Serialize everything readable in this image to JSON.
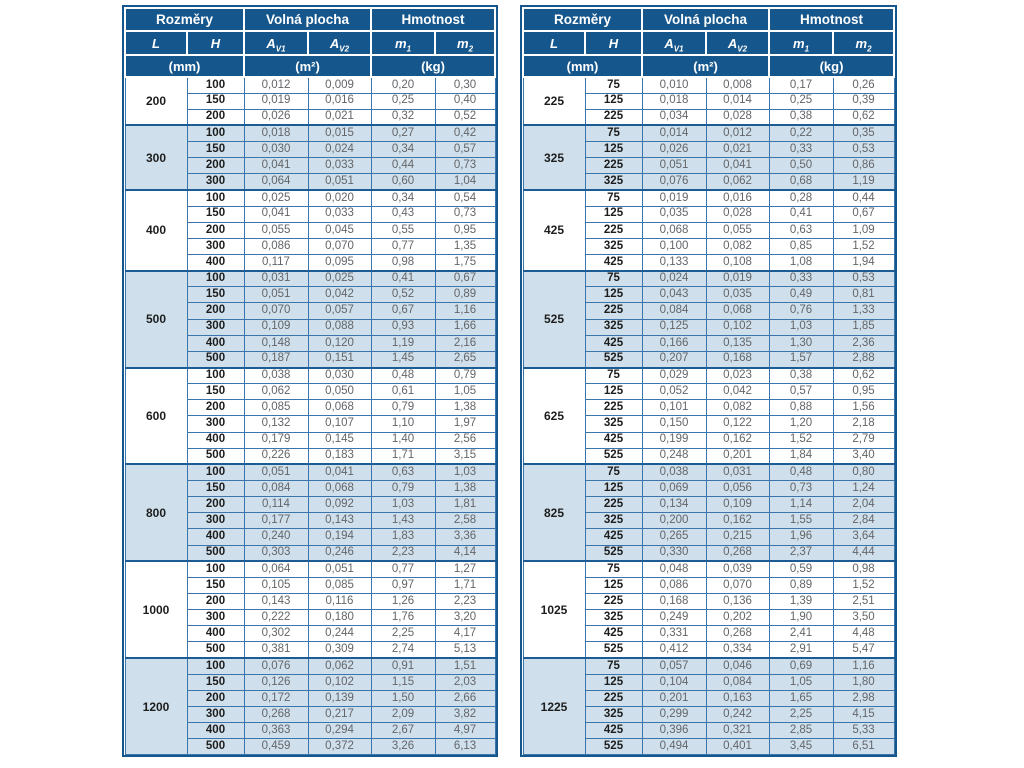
{
  "header": {
    "group_dimensions": "Rozměry",
    "group_free_area": "Volná plocha",
    "group_weight": "Hmotnost",
    "col_l": "L",
    "col_h": "H",
    "symbol_a": "A",
    "sub_v1": "V1",
    "sub_v2": "V2",
    "symbol_m": "m",
    "sub_1": "1",
    "sub_2": "2",
    "unit_mm": "(mm)",
    "unit_m2": "(m²)",
    "unit_kg": "(kg)"
  },
  "colors": {
    "header_bg": "#15568d",
    "alt_row_bg": "#cfe0ec",
    "grid_line": "#3a76ab",
    "group_line": "#1c5c94",
    "value_text": "#636569",
    "dim_text": "#1d1d1d"
  },
  "tables": [
    {
      "side": "left",
      "groups": [
        {
          "l": "200",
          "rows": [
            [
              "100",
              "0,012",
              "0,009",
              "0,20",
              "0,30"
            ],
            [
              "150",
              "0,019",
              "0,016",
              "0,25",
              "0,40"
            ],
            [
              "200",
              "0,026",
              "0,021",
              "0,32",
              "0,52"
            ]
          ]
        },
        {
          "l": "300",
          "rows": [
            [
              "100",
              "0,018",
              "0,015",
              "0,27",
              "0,42"
            ],
            [
              "150",
              "0,030",
              "0,024",
              "0,34",
              "0,57"
            ],
            [
              "200",
              "0,041",
              "0,033",
              "0,44",
              "0,73"
            ],
            [
              "300",
              "0,064",
              "0,051",
              "0,60",
              "1,04"
            ]
          ]
        },
        {
          "l": "400",
          "rows": [
            [
              "100",
              "0,025",
              "0,020",
              "0,34",
              "0,54"
            ],
            [
              "150",
              "0,041",
              "0,033",
              "0,43",
              "0,73"
            ],
            [
              "200",
              "0,055",
              "0,045",
              "0,55",
              "0,95"
            ],
            [
              "300",
              "0,086",
              "0,070",
              "0,77",
              "1,35"
            ],
            [
              "400",
              "0,117",
              "0,095",
              "0,98",
              "1,75"
            ]
          ]
        },
        {
          "l": "500",
          "rows": [
            [
              "100",
              "0,031",
              "0,025",
              "0,41",
              "0,67"
            ],
            [
              "150",
              "0,051",
              "0,042",
              "0,52",
              "0,89"
            ],
            [
              "200",
              "0,070",
              "0,057",
              "0,67",
              "1,16"
            ],
            [
              "300",
              "0,109",
              "0,088",
              "0,93",
              "1,66"
            ],
            [
              "400",
              "0,148",
              "0,120",
              "1,19",
              "2,16"
            ],
            [
              "500",
              "0,187",
              "0,151",
              "1,45",
              "2,65"
            ]
          ]
        },
        {
          "l": "600",
          "rows": [
            [
              "100",
              "0,038",
              "0,030",
              "0,48",
              "0,79"
            ],
            [
              "150",
              "0,062",
              "0,050",
              "0,61",
              "1,05"
            ],
            [
              "200",
              "0,085",
              "0,068",
              "0,79",
              "1,38"
            ],
            [
              "300",
              "0,132",
              "0,107",
              "1,10",
              "1,97"
            ],
            [
              "400",
              "0,179",
              "0,145",
              "1,40",
              "2,56"
            ],
            [
              "500",
              "0,226",
              "0,183",
              "1,71",
              "3,15"
            ]
          ]
        },
        {
          "l": "800",
          "rows": [
            [
              "100",
              "0,051",
              "0,041",
              "0,63",
              "1,03"
            ],
            [
              "150",
              "0,084",
              "0,068",
              "0,79",
              "1,38"
            ],
            [
              "200",
              "0,114",
              "0,092",
              "1,03",
              "1,81"
            ],
            [
              "300",
              "0,177",
              "0,143",
              "1,43",
              "2,58"
            ],
            [
              "400",
              "0,240",
              "0,194",
              "1,83",
              "3,36"
            ],
            [
              "500",
              "0,303",
              "0,246",
              "2,23",
              "4,14"
            ]
          ]
        },
        {
          "l": "1000",
          "rows": [
            [
              "100",
              "0,064",
              "0,051",
              "0,77",
              "1,27"
            ],
            [
              "150",
              "0,105",
              "0,085",
              "0,97",
              "1,71"
            ],
            [
              "200",
              "0,143",
              "0,116",
              "1,26",
              "2,23"
            ],
            [
              "300",
              "0,222",
              "0,180",
              "1,76",
              "3,20"
            ],
            [
              "400",
              "0,302",
              "0,244",
              "2,25",
              "4,17"
            ],
            [
              "500",
              "0,381",
              "0,309",
              "2,74",
              "5,13"
            ]
          ]
        },
        {
          "l": "1200",
          "rows": [
            [
              "100",
              "0,076",
              "0,062",
              "0,91",
              "1,51"
            ],
            [
              "150",
              "0,126",
              "0,102",
              "1,15",
              "2,03"
            ],
            [
              "200",
              "0,172",
              "0,139",
              "1,50",
              "2,66"
            ],
            [
              "300",
              "0,268",
              "0,217",
              "2,09",
              "3,82"
            ],
            [
              "400",
              "0,363",
              "0,294",
              "2,67",
              "4,97"
            ],
            [
              "500",
              "0,459",
              "0,372",
              "3,26",
              "6,13"
            ]
          ]
        }
      ]
    },
    {
      "side": "right",
      "groups": [
        {
          "l": "225",
          "rows": [
            [
              "75",
              "0,010",
              "0,008",
              "0,17",
              "0,26"
            ],
            [
              "125",
              "0,018",
              "0,014",
              "0,25",
              "0,39"
            ],
            [
              "225",
              "0,034",
              "0,028",
              "0,38",
              "0,62"
            ]
          ]
        },
        {
          "l": "325",
          "rows": [
            [
              "75",
              "0,014",
              "0,012",
              "0,22",
              "0,35"
            ],
            [
              "125",
              "0,026",
              "0,021",
              "0,33",
              "0,53"
            ],
            [
              "225",
              "0,051",
              "0,041",
              "0,50",
              "0,86"
            ],
            [
              "325",
              "0,076",
              "0,062",
              "0,68",
              "1,19"
            ]
          ]
        },
        {
          "l": "425",
          "rows": [
            [
              "75",
              "0,019",
              "0,016",
              "0,28",
              "0,44"
            ],
            [
              "125",
              "0,035",
              "0,028",
              "0,41",
              "0,67"
            ],
            [
              "225",
              "0,068",
              "0,055",
              "0,63",
              "1,09"
            ],
            [
              "325",
              "0,100",
              "0,082",
              "0,85",
              "1,52"
            ],
            [
              "425",
              "0,133",
              "0,108",
              "1,08",
              "1,94"
            ]
          ]
        },
        {
          "l": "525",
          "rows": [
            [
              "75",
              "0,024",
              "0,019",
              "0,33",
              "0,53"
            ],
            [
              "125",
              "0,043",
              "0,035",
              "0,49",
              "0,81"
            ],
            [
              "225",
              "0,084",
              "0,068",
              "0,76",
              "1,33"
            ],
            [
              "325",
              "0,125",
              "0,102",
              "1,03",
              "1,85"
            ],
            [
              "425",
              "0,166",
              "0,135",
              "1,30",
              "2,36"
            ],
            [
              "525",
              "0,207",
              "0,168",
              "1,57",
              "2,88"
            ]
          ]
        },
        {
          "l": "625",
          "rows": [
            [
              "75",
              "0,029",
              "0,023",
              "0,38",
              "0,62"
            ],
            [
              "125",
              "0,052",
              "0,042",
              "0,57",
              "0,95"
            ],
            [
              "225",
              "0,101",
              "0,082",
              "0,88",
              "1,56"
            ],
            [
              "325",
              "0,150",
              "0,122",
              "1,20",
              "2,18"
            ],
            [
              "425",
              "0,199",
              "0,162",
              "1,52",
              "2,79"
            ],
            [
              "525",
              "0,248",
              "0,201",
              "1,84",
              "3,40"
            ]
          ]
        },
        {
          "l": "825",
          "rows": [
            [
              "75",
              "0,038",
              "0,031",
              "0,48",
              "0,80"
            ],
            [
              "125",
              "0,069",
              "0,056",
              "0,73",
              "1,24"
            ],
            [
              "225",
              "0,134",
              "0,109",
              "1,14",
              "2,04"
            ],
            [
              "325",
              "0,200",
              "0,162",
              "1,55",
              "2,84"
            ],
            [
              "425",
              "0,265",
              "0,215",
              "1,96",
              "3,64"
            ],
            [
              "525",
              "0,330",
              "0,268",
              "2,37",
              "4,44"
            ]
          ]
        },
        {
          "l": "1025",
          "rows": [
            [
              "75",
              "0,048",
              "0,039",
              "0,59",
              "0,98"
            ],
            [
              "125",
              "0,086",
              "0,070",
              "0,89",
              "1,52"
            ],
            [
              "225",
              "0,168",
              "0,136",
              "1,39",
              "2,51"
            ],
            [
              "325",
              "0,249",
              "0,202",
              "1,90",
              "3,50"
            ],
            [
              "425",
              "0,331",
              "0,268",
              "2,41",
              "4,48"
            ],
            [
              "525",
              "0,412",
              "0,334",
              "2,91",
              "5,47"
            ]
          ]
        },
        {
          "l": "1225",
          "rows": [
            [
              "75",
              "0,057",
              "0,046",
              "0,69",
              "1,16"
            ],
            [
              "125",
              "0,104",
              "0,084",
              "1,05",
              "1,80"
            ],
            [
              "225",
              "0,201",
              "0,163",
              "1,65",
              "2,98"
            ],
            [
              "325",
              "0,299",
              "0,242",
              "2,25",
              "4,15"
            ],
            [
              "425",
              "0,396",
              "0,321",
              "2,85",
              "5,33"
            ],
            [
              "525",
              "0,494",
              "0,401",
              "3,45",
              "6,51"
            ]
          ]
        }
      ]
    }
  ]
}
